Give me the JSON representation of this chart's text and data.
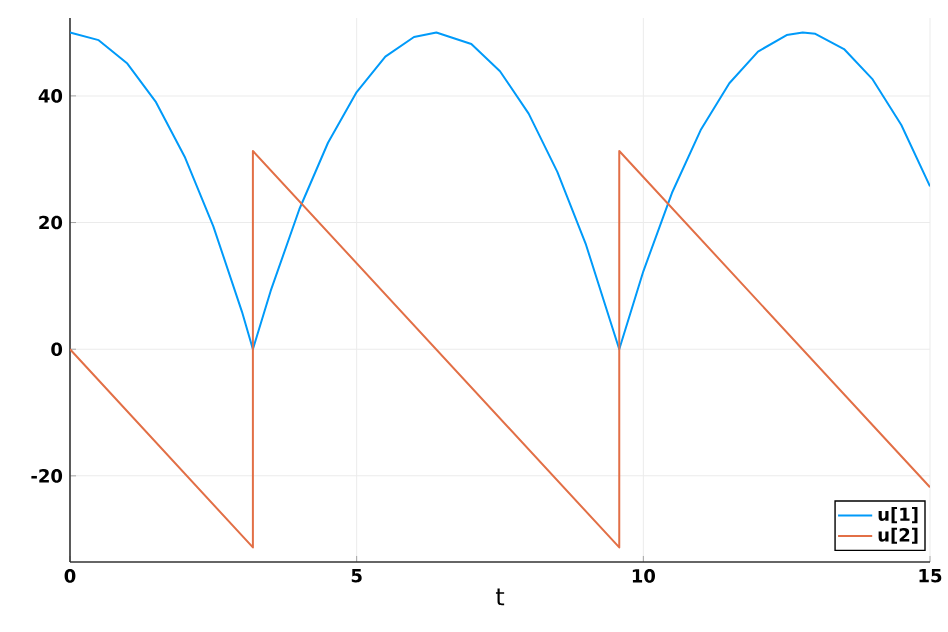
{
  "chart_data": {
    "type": "line",
    "xlabel": "t",
    "xlim": [
      0,
      15
    ],
    "xticks": [
      0,
      5,
      10,
      15
    ],
    "ylim": [
      -33.6,
      52.3
    ],
    "yticks": [
      -20,
      0,
      20,
      40
    ],
    "grid": true,
    "legend": "bottom right",
    "marker": "none",
    "line_style": "solid",
    "series": [
      {
        "name": "u[1]",
        "color": "#009af9",
        "x": [
          0,
          0.5,
          1,
          1.5,
          2,
          2.5,
          3,
          3.19,
          3.5,
          4,
          4.5,
          5,
          5.5,
          6,
          6.39,
          7,
          7.5,
          8,
          8.5,
          9,
          9.58,
          10,
          10.5,
          11,
          11.5,
          12,
          12.5,
          12.78,
          13,
          13.5,
          14,
          14.5,
          15
        ],
        "values": [
          50,
          48.8,
          45.1,
          39.0,
          30.4,
          19.4,
          5.9,
          0,
          9.2,
          22.1,
          32.6,
          40.6,
          46.2,
          49.3,
          50,
          48.2,
          43.9,
          37.2,
          28.0,
          16.5,
          0,
          12.3,
          24.7,
          34.6,
          42.0,
          47.0,
          49.6,
          50,
          49.8,
          47.4,
          42.6,
          35.4,
          25.7
        ]
      },
      {
        "name": "u[2]",
        "color": "#e26f46",
        "x": [
          0,
          3.19,
          3.19,
          9.58,
          9.58,
          15
        ],
        "values": [
          0,
          -31.3,
          31.3,
          -31.3,
          31.3,
          -21.8
        ]
      }
    ]
  }
}
